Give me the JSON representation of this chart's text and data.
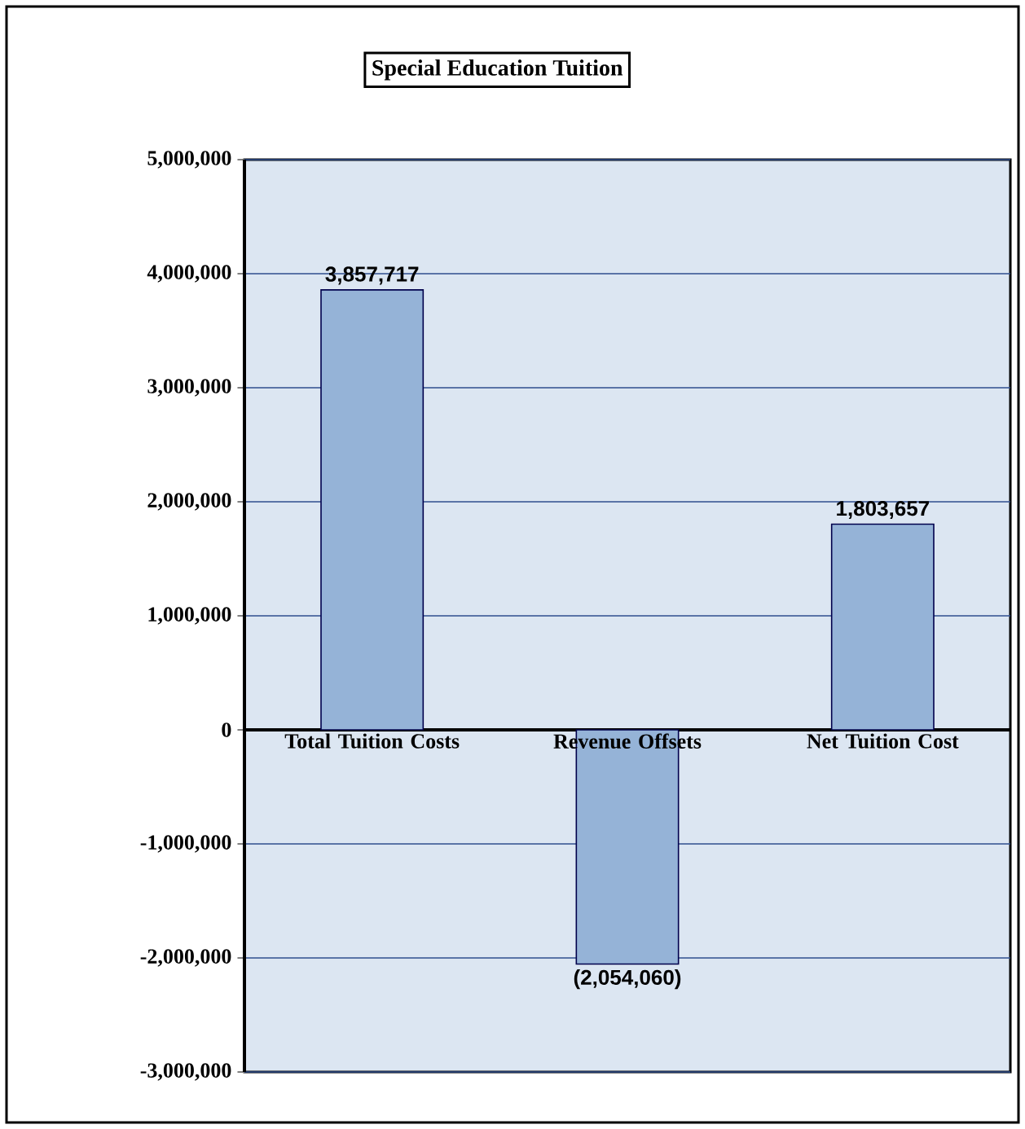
{
  "chart_data": {
    "type": "bar",
    "title": "Special Education Tuition",
    "categories": [
      "Total Tuition Costs",
      "Revenue Offsets",
      "Net Tuition Cost"
    ],
    "values": [
      3857717,
      -2054060,
      1803657
    ],
    "value_labels": [
      "3,857,717",
      "(2,054,060)",
      "1,803,657"
    ],
    "color": "#95b3d7",
    "ylim": [
      -3000000,
      5000000
    ],
    "yticks": [
      {
        "value": -3000000,
        "label": "-3,000,000"
      },
      {
        "value": -2000000,
        "label": "-2,000,000"
      },
      {
        "value": -1000000,
        "label": "-1,000,000"
      },
      0,
      {
        "value": 1000000,
        "label": "1,000,000"
      },
      {
        "value": 2000000,
        "label": "2,000,000"
      },
      {
        "value": 3000000,
        "label": "3,000,000"
      },
      {
        "value": 4000000,
        "label": "4,000,000"
      },
      {
        "value": 5000000,
        "label": "5,000,000"
      }
    ],
    "grid": "y"
  }
}
